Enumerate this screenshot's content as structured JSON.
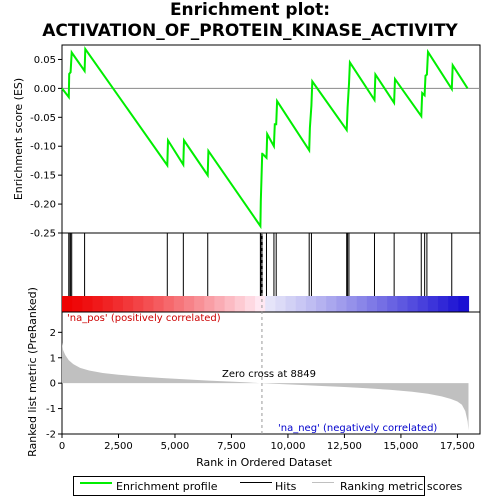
{
  "title_line1": "Enrichment plot:",
  "title_line2": "ACTIVATION_OF_PROTEIN_KINASE_ACTIVITY",
  "chart_data": {
    "type": "line",
    "es_panel": {
      "ylabel": "Enrichment score (ES)",
      "ylim": [
        -0.25,
        0.075
      ],
      "yticks": [
        -0.25,
        -0.2,
        -0.15,
        -0.1,
        -0.05,
        0.0,
        0.05
      ],
      "ytick_labels": [
        "-0.25",
        "-0.20",
        "-0.15",
        "-0.10",
        "-0.05",
        "0.00",
        "0.05"
      ],
      "series": [
        {
          "name": "Enrichment profile",
          "color": "#00ee00",
          "x": [
            0,
            300,
            320,
            380,
            430,
            1000,
            1030,
            4660,
            4690,
            5370,
            5400,
            6450,
            6480,
            8780,
            8800,
            8830,
            8860,
            8870,
            9050,
            9080,
            9380,
            9420,
            9480,
            9520,
            10940,
            10970,
            11040,
            11080,
            12600,
            12640,
            12700,
            12740,
            13830,
            13870,
            14700,
            14740,
            15900,
            15940,
            16050,
            16090,
            16150,
            16200,
            17250,
            17290,
            17950
          ],
          "y": [
            0.0,
            -0.015,
            0.025,
            0.028,
            0.062,
            0.03,
            0.068,
            -0.133,
            -0.09,
            -0.132,
            -0.09,
            -0.15,
            -0.108,
            -0.238,
            -0.195,
            -0.155,
            -0.113,
            -0.113,
            -0.12,
            -0.079,
            -0.1,
            -0.062,
            -0.062,
            -0.022,
            -0.107,
            -0.068,
            -0.03,
            0.012,
            -0.072,
            -0.033,
            0.008,
            0.045,
            -0.02,
            0.024,
            -0.025,
            0.016,
            -0.048,
            -0.008,
            -0.012,
            0.022,
            0.024,
            0.063,
            -0.001,
            0.04,
            0.0
          ]
        }
      ]
    },
    "hits_panel": {
      "label": "Hits",
      "hit_positions": [
        300,
        320,
        380,
        430,
        1000,
        4660,
        5370,
        6450,
        8780,
        8800,
        8830,
        8860,
        9050,
        9380,
        9480,
        10940,
        11040,
        12600,
        12640,
        12700,
        13830,
        14700,
        15900,
        16050,
        16150,
        17250
      ]
    },
    "rank_panel": {
      "ylabel": "Ranked list metric (PreRanked)",
      "ylim": [
        -2,
        2.8
      ],
      "yticks": [
        -2,
        -1,
        0,
        1,
        2
      ],
      "ytick_labels": [
        "-2",
        "-1",
        "0",
        "1",
        "2"
      ],
      "series_name": "Ranking metric scores",
      "metric_x": [
        0,
        50,
        150,
        300,
        500,
        800,
        1200,
        1800,
        2500,
        3500,
        4500,
        5500,
        6500,
        7500,
        8200,
        8849,
        9500,
        10500,
        11500,
        12500,
        13500,
        14500,
        15500,
        16200,
        16800,
        17200,
        17500,
        17700,
        17850,
        17950,
        17990
      ],
      "metric_y": [
        1.6,
        1.3,
        1.1,
        0.9,
        0.75,
        0.6,
        0.5,
        0.4,
        0.33,
        0.26,
        0.2,
        0.15,
        0.1,
        0.06,
        0.03,
        0.0,
        -0.03,
        -0.07,
        -0.11,
        -0.15,
        -0.2,
        -0.26,
        -0.34,
        -0.42,
        -0.52,
        -0.62,
        -0.72,
        -0.85,
        -1.1,
        -1.5,
        -1.85
      ]
    },
    "xaxis": {
      "xlabel": "Rank in Ordered Dataset",
      "xlim": [
        0,
        18500
      ],
      "xticks": [
        0,
        2500,
        5000,
        7500,
        10000,
        12500,
        15000,
        17500
      ],
      "xtick_labels": [
        "0",
        "2,500",
        "5,000",
        "7,500",
        "10,000",
        "12,500",
        "15,000",
        "17,500"
      ]
    },
    "list_length": 17990,
    "zero_cross": 8849,
    "annotations": {
      "pos_label": "'na_pos' (positively correlated)",
      "neg_label": "'na_neg' (negatively correlated)",
      "zero_label": "Zero cross at 8849"
    },
    "colors": {
      "pos": "#ee0000",
      "neg": "#0000dd",
      "metric_fill": "#c0c0c0"
    }
  },
  "legend": {
    "items": [
      {
        "label": "Enrichment profile",
        "color": "#00ee00"
      },
      {
        "label": "Hits",
        "color": "#000000"
      },
      {
        "label": "Ranking metric scores",
        "color": "#c0c0c0"
      }
    ]
  }
}
